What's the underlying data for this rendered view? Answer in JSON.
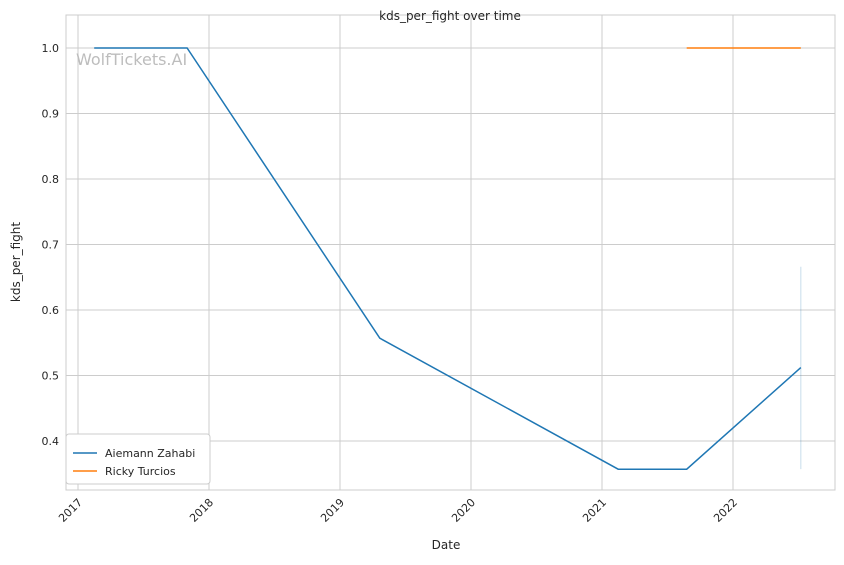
{
  "chart_data": {
    "type": "line",
    "title": "kds_per_fight over time",
    "xlabel": "Date",
    "ylabel": "kds_per_fight",
    "xticks": [
      "2017",
      "2018",
      "2019",
      "2020",
      "2021",
      "2022"
    ],
    "yticks": [
      "0.4",
      "0.5",
      "0.6",
      "0.7",
      "0.8",
      "0.9",
      "1.0"
    ],
    "ylim": [
      0.325,
      1.05
    ],
    "xlim": [
      "2016-11",
      "2022-12"
    ],
    "grid": true,
    "legend_position": "bottom-left",
    "watermark": "WolfTickets.AI",
    "series": [
      {
        "name": "Aiemann Zahabi",
        "color": "#1f77b4",
        "x": [
          "2017-02-15",
          "2017-11-01",
          "2019-04-22",
          "2021-02-15",
          "2021-08-25",
          "2022-07-09"
        ],
        "y": [
          1.0,
          1.0,
          0.557,
          0.357,
          0.357,
          0.512
        ],
        "interval_at_last": [
          0.357,
          0.666
        ]
      },
      {
        "name": "Ricky Turcios",
        "color": "#ff7f0e",
        "x": [
          "2021-08-25",
          "2022-07-09"
        ],
        "y": [
          1.0,
          1.0
        ]
      }
    ]
  }
}
